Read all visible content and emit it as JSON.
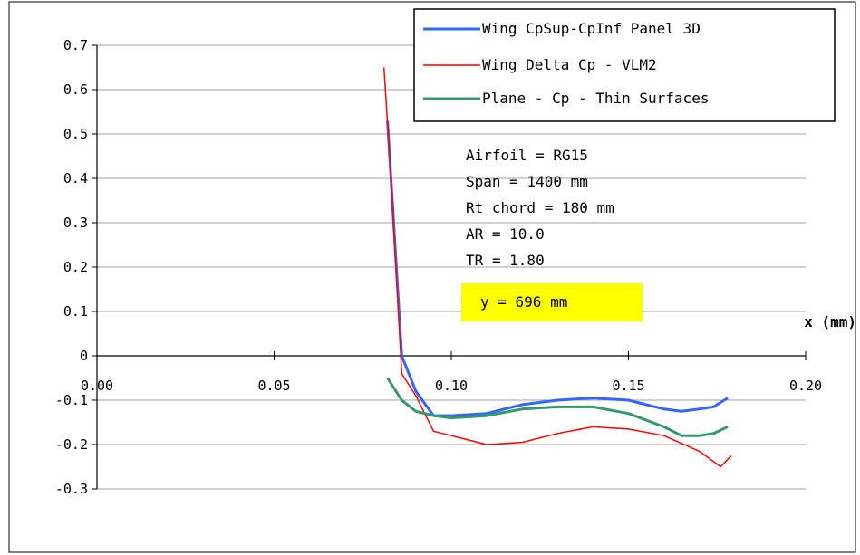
{
  "chart_data": {
    "type": "line",
    "title": "",
    "xlabel": "x (mm)",
    "ylabel": "",
    "xlim": [
      0,
      0.2
    ],
    "ylim": [
      -0.3,
      0.7
    ],
    "grid": "horizontal",
    "legend_placement": "top-right",
    "x_ticks": [
      "0.00",
      "0.05",
      "0.10",
      "0.15",
      "0.20"
    ],
    "y_ticks": [
      "-0.3",
      "-0.2",
      "-0.1",
      "0",
      "0.1",
      "0.2",
      "0.3",
      "0.4",
      "0.5",
      "0.6",
      "0.7"
    ],
    "series": [
      {
        "name": "Wing CpSup-CpInf Panel 3D",
        "color": "#3366ff",
        "x": [
          0.082,
          0.086,
          0.09,
          0.095,
          0.1,
          0.11,
          0.12,
          0.13,
          0.14,
          0.15,
          0.16,
          0.165,
          0.17,
          0.174,
          0.178
        ],
        "y": [
          0.53,
          0.0,
          -0.08,
          -0.135,
          -0.135,
          -0.13,
          -0.11,
          -0.1,
          -0.095,
          -0.1,
          -0.12,
          -0.125,
          -0.12,
          -0.115,
          -0.095
        ]
      },
      {
        "name": "Wing Delta Cp - VLM2",
        "color": "#ff0000",
        "x": [
          0.081,
          0.083,
          0.086,
          0.09,
          0.095,
          0.1,
          0.11,
          0.12,
          0.13,
          0.14,
          0.15,
          0.16,
          0.17,
          0.176,
          0.179
        ],
        "y": [
          0.65,
          0.4,
          -0.04,
          -0.09,
          -0.17,
          -0.18,
          -0.2,
          -0.195,
          -0.175,
          -0.16,
          -0.165,
          -0.18,
          -0.215,
          -0.25,
          -0.225
        ]
      },
      {
        "name": "Plane - Cp - Thin Surfaces",
        "color": "#339966",
        "x": [
          0.082,
          0.086,
          0.09,
          0.095,
          0.1,
          0.11,
          0.12,
          0.13,
          0.14,
          0.15,
          0.16,
          0.165,
          0.17,
          0.174,
          0.178
        ],
        "y": [
          -0.05,
          -0.1,
          -0.125,
          -0.135,
          -0.14,
          -0.135,
          -0.12,
          -0.115,
          -0.115,
          -0.13,
          -0.16,
          -0.18,
          -0.18,
          -0.175,
          -0.16
        ]
      }
    ],
    "annotations": [
      "Airfoil = RG15",
      "Span = 1400 mm",
      "Rt chord = 180 mm",
      "AR = 10.0",
      "TR = 1.80"
    ],
    "highlight_annotation": "y = 696 mm",
    "highlight_color": "#ffff00"
  }
}
